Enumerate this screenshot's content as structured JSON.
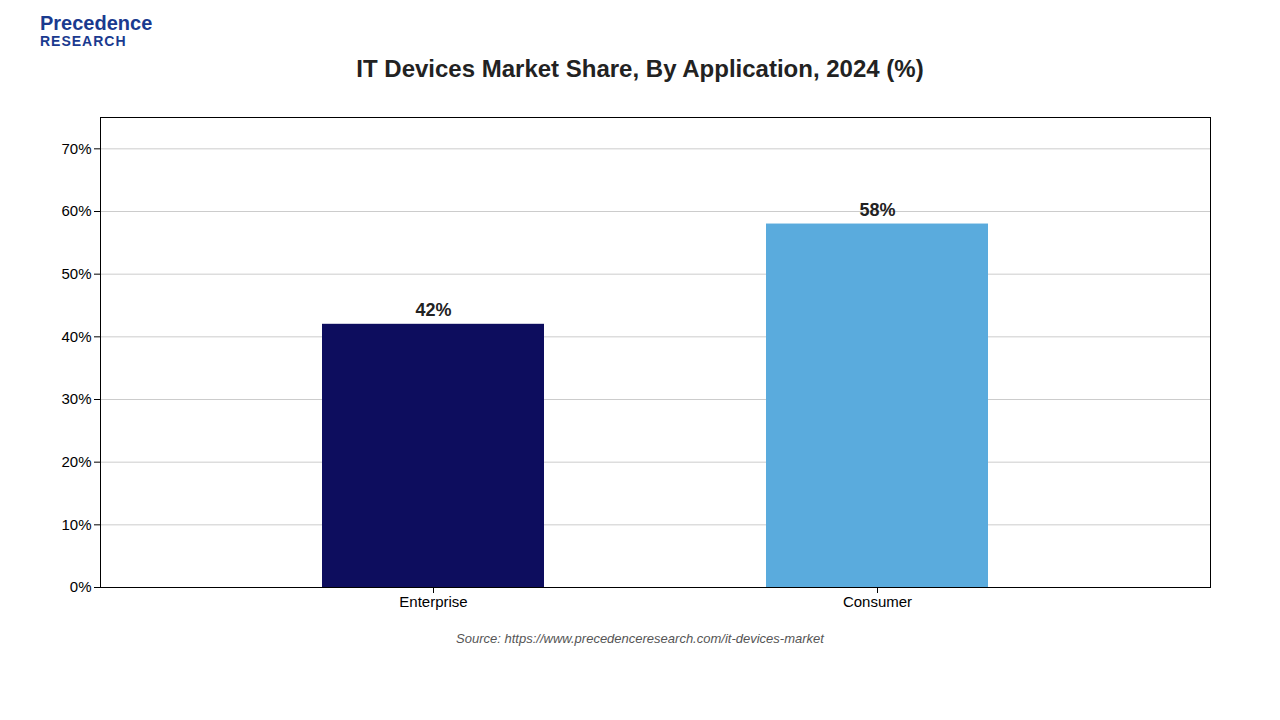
{
  "chart_data": {
    "type": "bar",
    "title": "IT Devices Market Share, By Application, 2024 (%)",
    "categories": [
      "Enterprise",
      "Consumer"
    ],
    "values": [
      42,
      58
    ],
    "value_labels": [
      "42%",
      "58%"
    ],
    "colors": [
      "#0d0d5e",
      "#5aabdd"
    ],
    "ylim": [
      0,
      75
    ],
    "yticks": [
      {
        "value": 0,
        "label": "0%"
      },
      {
        "value": 10,
        "label": "10%"
      },
      {
        "value": 20,
        "label": "20%"
      },
      {
        "value": 30,
        "label": "30%"
      },
      {
        "value": 40,
        "label": "40%"
      },
      {
        "value": 50,
        "label": "50%"
      },
      {
        "value": 60,
        "label": "60%"
      },
      {
        "value": 70,
        "label": "70%"
      }
    ],
    "grid": true,
    "data_labels": true,
    "annotations": [
      "Precedence",
      "RESEARCH",
      "Source: https://www.precedenceresearch.com/it-devices-market"
    ]
  }
}
